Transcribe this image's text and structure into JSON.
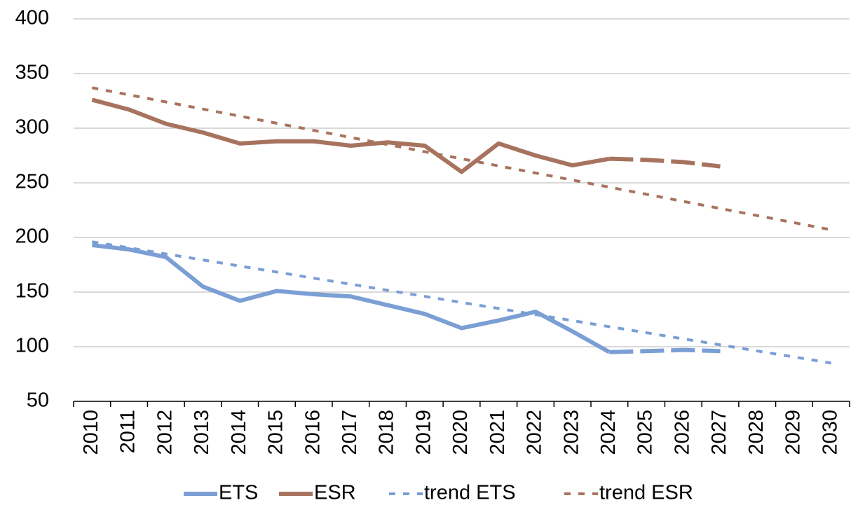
{
  "chart_data": {
    "type": "line",
    "categories": [
      "2010",
      "2011",
      "2012",
      "2013",
      "2014",
      "2015",
      "2016",
      "2017",
      "2018",
      "2019",
      "2020",
      "2021",
      "2022",
      "2023",
      "2024",
      "2025",
      "2026",
      "2027",
      "2028",
      "2029",
      "2030"
    ],
    "ylim": [
      50,
      400
    ],
    "yticks": [
      50,
      100,
      150,
      200,
      250,
      300,
      350,
      400
    ],
    "grid": true,
    "legend": "bottom",
    "series": [
      {
        "name": "ETS",
        "color": "#7b9fd4",
        "style": "solid",
        "values": [
          193,
          189,
          182,
          155,
          142,
          151,
          148,
          146,
          138,
          130,
          117,
          124,
          132,
          114,
          95,
          null,
          null,
          null,
          null,
          null,
          null
        ],
        "projected": [
          null,
          null,
          null,
          null,
          null,
          null,
          null,
          null,
          null,
          null,
          null,
          null,
          null,
          null,
          95,
          96,
          97,
          96,
          null,
          null,
          null
        ]
      },
      {
        "name": "ESR",
        "color": "#a8735e",
        "style": "solid",
        "values": [
          326,
          317,
          304,
          296,
          286,
          288,
          288,
          284,
          287,
          284,
          260,
          286,
          275,
          266,
          272,
          null,
          null,
          null,
          null,
          null,
          null
        ],
        "projected": [
          null,
          null,
          null,
          null,
          null,
          null,
          null,
          null,
          null,
          null,
          null,
          null,
          null,
          null,
          272,
          271,
          269,
          265,
          null,
          null,
          null
        ]
      },
      {
        "name": "trend ETS",
        "color": "#7b9fd4",
        "style": "dotted",
        "values": [
          196,
          190.5,
          184.9,
          179.4,
          173.8,
          168.3,
          162.7,
          157.2,
          151.6,
          146.1,
          140.5,
          135,
          129.4,
          123.9,
          118.3,
          112.8,
          107.2,
          101.7,
          96.1,
          90.6,
          85
        ]
      },
      {
        "name": "trend ESR",
        "color": "#a8735e",
        "style": "dotted",
        "values": [
          337,
          330.5,
          324,
          317.5,
          311,
          304.5,
          298,
          291.5,
          285,
          278.5,
          272,
          265.5,
          259,
          252.5,
          246,
          239.5,
          233,
          226.5,
          220,
          213.5,
          207
        ]
      }
    ]
  }
}
